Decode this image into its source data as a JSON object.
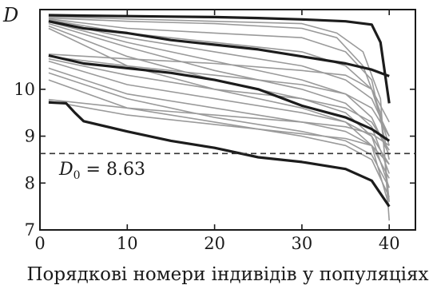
{
  "chart_data": {
    "type": "line",
    "title": "",
    "xlabel": "Порядкові номери індивідів у популяціях",
    "ylabel": "D",
    "xlim": [
      0,
      43
    ],
    "ylim": [
      7,
      11.7
    ],
    "xticks": [
      0,
      10,
      20,
      30,
      40
    ],
    "yticks": [
      7,
      8,
      9,
      10
    ],
    "ytick_labels": [
      "7",
      "8",
      "9",
      "10"
    ],
    "reference_line": {
      "y": 8.63,
      "style": "dashed",
      "label_main": "D",
      "label_sub": "0",
      "label_rest": " = 8.63"
    },
    "grid": false,
    "legend": "none",
    "colors": {
      "black_series": "#1c1c1c",
      "gray_series": "#9a9a9a",
      "axis": "#1a1a1a",
      "dashed": "#333333"
    },
    "series": [
      {
        "color": "black",
        "x": [
          1,
          5,
          10,
          15,
          20,
          25,
          30,
          35,
          38,
          39,
          40
        ],
        "y": [
          11.58,
          11.57,
          11.56,
          11.55,
          11.54,
          11.52,
          11.49,
          11.45,
          11.38,
          11.0,
          9.7
        ]
      },
      {
        "color": "black",
        "x": [
          1,
          5,
          10,
          15,
          20,
          25,
          30,
          35,
          38,
          40
        ],
        "y": [
          11.45,
          11.3,
          11.2,
          11.05,
          10.95,
          10.85,
          10.7,
          10.55,
          10.42,
          10.28
        ]
      },
      {
        "color": "black",
        "x": [
          1,
          5,
          10,
          15,
          20,
          25,
          30,
          35,
          38,
          40
        ],
        "y": [
          10.72,
          10.55,
          10.45,
          10.35,
          10.2,
          10.0,
          9.65,
          9.4,
          9.15,
          8.9
        ]
      },
      {
        "color": "black",
        "x": [
          1,
          3,
          4,
          5,
          10,
          15,
          20,
          25,
          30,
          35,
          38,
          40
        ],
        "y": [
          9.72,
          9.7,
          9.5,
          9.32,
          9.1,
          8.9,
          8.75,
          8.55,
          8.45,
          8.3,
          8.05,
          7.5
        ]
      },
      {
        "color": "gray",
        "x": [
          1,
          10,
          20,
          30,
          34,
          37,
          39,
          40
        ],
        "y": [
          11.55,
          11.5,
          11.45,
          11.4,
          11.2,
          10.8,
          9.8,
          7.2
        ]
      },
      {
        "color": "gray",
        "x": [
          1,
          10,
          20,
          30,
          34,
          37,
          39,
          40
        ],
        "y": [
          11.52,
          11.45,
          11.4,
          11.3,
          11.1,
          10.5,
          9.5,
          7.6
        ]
      },
      {
        "color": "gray",
        "x": [
          1,
          10,
          20,
          30,
          35,
          38,
          40
        ],
        "y": [
          11.5,
          11.3,
          11.2,
          11.1,
          10.8,
          10.2,
          8.5
        ]
      },
      {
        "color": "gray",
        "x": [
          1,
          10,
          20,
          30,
          35,
          38,
          40
        ],
        "y": [
          11.48,
          11.2,
          11.0,
          10.8,
          10.5,
          10.0,
          8.8
        ]
      },
      {
        "color": "gray",
        "x": [
          1,
          10,
          20,
          30,
          35,
          38,
          40
        ],
        "y": [
          11.46,
          11.1,
          10.8,
          10.5,
          10.2,
          9.8,
          9.0
        ]
      },
      {
        "color": "gray",
        "x": [
          1,
          10,
          20,
          30,
          35,
          38,
          40
        ],
        "y": [
          11.44,
          11.0,
          10.6,
          10.2,
          9.9,
          9.4,
          8.6
        ]
      },
      {
        "color": "gray",
        "x": [
          1,
          10,
          20,
          30,
          35,
          38,
          40
        ],
        "y": [
          11.4,
          10.9,
          10.4,
          10.0,
          9.7,
          9.2,
          8.2
        ]
      },
      {
        "color": "gray",
        "x": [
          1,
          10,
          20,
          30,
          35,
          38,
          40
        ],
        "y": [
          11.35,
          10.7,
          10.2,
          9.8,
          9.5,
          9.0,
          7.9
        ]
      },
      {
        "color": "gray",
        "x": [
          1,
          10,
          20,
          30,
          35,
          38,
          40
        ],
        "y": [
          11.3,
          10.5,
          10.0,
          9.6,
          9.3,
          8.8,
          7.5
        ]
      },
      {
        "color": "gray",
        "x": [
          1,
          10,
          20,
          30,
          35,
          38,
          40
        ],
        "y": [
          10.75,
          10.65,
          10.55,
          10.4,
          10.3,
          10.0,
          9.3
        ]
      },
      {
        "color": "gray",
        "x": [
          1,
          10,
          20,
          30,
          35,
          38,
          40
        ],
        "y": [
          10.7,
          10.5,
          10.3,
          10.1,
          9.9,
          9.6,
          9.0
        ]
      },
      {
        "color": "gray",
        "x": [
          1,
          10,
          20,
          30,
          35,
          38,
          40
        ],
        "y": [
          10.65,
          10.3,
          10.0,
          9.8,
          9.6,
          9.3,
          8.7
        ]
      },
      {
        "color": "gray",
        "x": [
          1,
          10,
          20,
          30,
          35,
          38,
          40
        ],
        "y": [
          10.6,
          10.1,
          9.8,
          9.5,
          9.3,
          9.0,
          8.4
        ]
      },
      {
        "color": "gray",
        "x": [
          1,
          10,
          20,
          30,
          35,
          38,
          40
        ],
        "y": [
          10.45,
          9.9,
          9.6,
          9.3,
          9.1,
          8.8,
          8.1
        ]
      },
      {
        "color": "gray",
        "x": [
          1,
          10,
          20,
          30,
          35,
          38,
          40
        ],
        "y": [
          10.35,
          9.8,
          9.4,
          9.1,
          8.9,
          8.6,
          7.9
        ]
      },
      {
        "color": "gray",
        "x": [
          1,
          10,
          20,
          30,
          35,
          38,
          40
        ],
        "y": [
          10.2,
          9.6,
          9.3,
          9.0,
          8.8,
          8.5,
          7.7
        ]
      },
      {
        "color": "gray",
        "x": [
          1,
          10,
          20,
          30,
          35,
          38,
          40
        ],
        "y": [
          9.78,
          9.6,
          9.45,
          9.3,
          9.2,
          9.05,
          8.8
        ]
      },
      {
        "color": "gray",
        "x": [
          1,
          10,
          20,
          30,
          35,
          38,
          40
        ],
        "y": [
          9.75,
          9.45,
          9.25,
          9.05,
          8.95,
          8.8,
          8.4
        ]
      }
    ]
  }
}
